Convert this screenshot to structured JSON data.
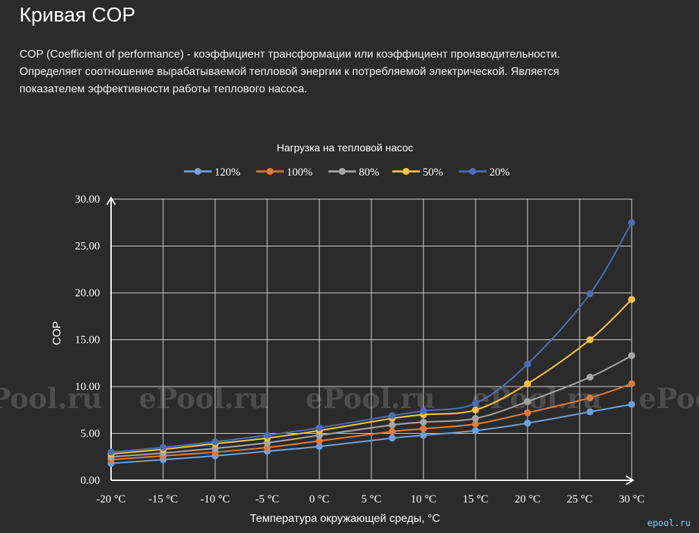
{
  "page": {
    "title": "Кривая COP",
    "description": [
      "COP (Coefficient of performance) - коэффициент трансформации или коэффициент производительности.",
      "Определяет соотношение вырабатываемой тепловой энергии к потребляемой электрической. Является",
      "показателем эффективности работы теплового насоса."
    ],
    "watermark_text": "ePool.ru",
    "corner_logo": "epool.ru"
  },
  "chart_data": {
    "type": "line",
    "title": "Нагрузка на тепловой насос",
    "xlabel": "Температура окружающей среды, °C",
    "ylabel": "COP",
    "x_tick_labels": [
      "-20 °C",
      "-15 °C",
      "-10 °C",
      "-5 °C",
      "0 °C",
      "5 °C",
      "10 °C",
      "15 °C",
      "20 °C",
      "25 °C",
      "30 °C"
    ],
    "y_tick_labels": [
      "0.00",
      "5.00",
      "10.00",
      "15.00",
      "20.00",
      "25.00",
      "30.00"
    ],
    "xlim": [
      -20,
      30
    ],
    "ylim": [
      0,
      30
    ],
    "x": [
      -20,
      -15,
      -10,
      -5,
      0,
      7,
      10,
      15,
      20,
      26,
      30
    ],
    "grid": true,
    "legend_position": "top",
    "series": [
      {
        "name": "120%",
        "color": "#6f9fd8",
        "values": [
          1.8,
          2.2,
          2.6,
          3.1,
          3.6,
          4.5,
          4.8,
          5.3,
          6.1,
          7.3,
          8.1
        ]
      },
      {
        "name": "100%",
        "color": "#e07b39",
        "values": [
          2.2,
          2.6,
          3.0,
          3.5,
          4.2,
          5.2,
          5.5,
          6.0,
          7.2,
          8.8,
          10.3
        ]
      },
      {
        "name": "80%",
        "color": "#a5a5a5",
        "values": [
          2.5,
          2.9,
          3.4,
          4.0,
          4.8,
          5.9,
          6.2,
          6.6,
          8.4,
          11.0,
          13.3
        ]
      },
      {
        "name": "50%",
        "color": "#f5c242",
        "values": [
          2.8,
          3.3,
          3.9,
          4.5,
          5.3,
          6.6,
          7.0,
          7.5,
          10.3,
          15.0,
          19.3
        ]
      },
      {
        "name": "20%",
        "color": "#4a6fb5",
        "values": [
          3.0,
          3.5,
          4.1,
          4.8,
          5.6,
          6.9,
          7.4,
          8.2,
          12.4,
          19.9,
          27.5
        ]
      }
    ]
  }
}
